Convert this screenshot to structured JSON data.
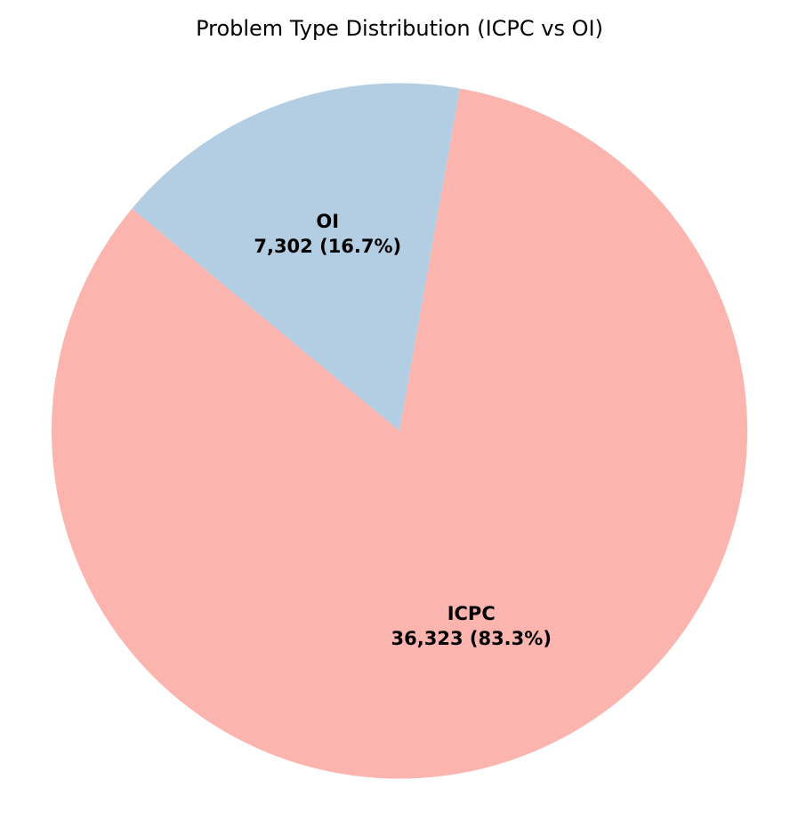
{
  "chart_data": {
    "type": "pie",
    "title": "Problem Type Distribution (ICPC vs OI)",
    "categories": [
      "ICPC",
      "OI"
    ],
    "values": [
      36323,
      7302
    ],
    "value_labels": [
      "36,323 (83.3%)",
      "7,302 (16.7%)"
    ],
    "colors": [
      "#fbb4ae",
      "#b3cde3"
    ]
  }
}
